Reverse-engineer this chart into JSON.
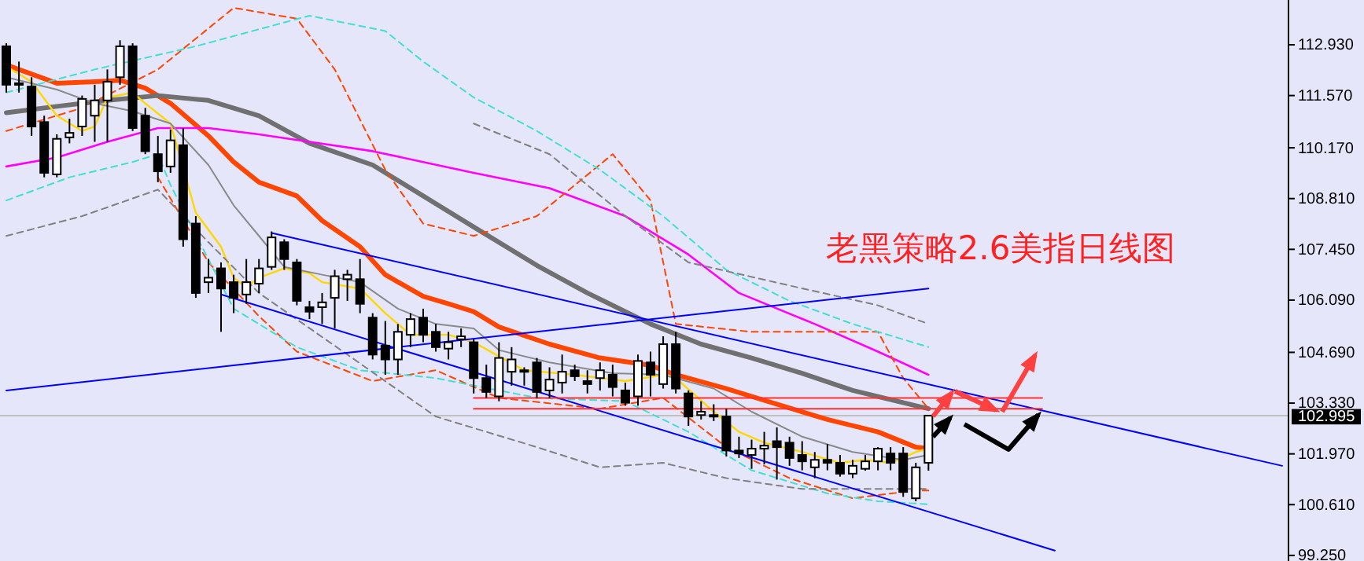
{
  "chart_data": {
    "type": "candlestick",
    "title": "老黑策略2.6美指日线图",
    "tick_labels": "y",
    "grid": false,
    "ylim": [
      99.1,
      114.13
    ],
    "yticks": [
      {
        "value": 112.93,
        "label": "112.930"
      },
      {
        "value": 111.57,
        "label": "111.570"
      },
      {
        "value": 110.17,
        "label": "110.170"
      },
      {
        "value": 108.81,
        "label": "108.810"
      },
      {
        "value": 107.45,
        "label": "107.450"
      },
      {
        "value": 106.09,
        "label": "106.090"
      },
      {
        "value": 104.69,
        "label": "104.690"
      },
      {
        "value": 103.33,
        "label": "103.330"
      },
      {
        "value": 101.97,
        "label": "101.970"
      },
      {
        "value": 100.61,
        "label": "100.610"
      },
      {
        "value": 99.25,
        "label": "99.250"
      }
    ],
    "categories": [
      null,
      null,
      null,
      null,
      null,
      null,
      null,
      null,
      null,
      null,
      null,
      null,
      null,
      null,
      null,
      null,
      null,
      null,
      null,
      null,
      null,
      null,
      null,
      null,
      null,
      null,
      null,
      null,
      null,
      null,
      null,
      null,
      null,
      null,
      null,
      null,
      null,
      null,
      null,
      null,
      null,
      null,
      null,
      null,
      null,
      null,
      null,
      null,
      null,
      null,
      null,
      null,
      null,
      null,
      null,
      null,
      null,
      null,
      null,
      null,
      null,
      null,
      null,
      null,
      null,
      null,
      null,
      null,
      null,
      null,
      null,
      null,
      null,
      null,
      null,
      null,
      null,
      null,
      null,
      null,
      null,
      null,
      null,
      null,
      null,
      null,
      null,
      null,
      null,
      null,
      null,
      null,
      null,
      null,
      null,
      null,
      null,
      null,
      null,
      null,
      null,
      null
    ],
    "ohlc": [
      [
        112.89,
        112.97,
        111.65,
        111.86
      ],
      [
        111.9,
        112.48,
        111.65,
        111.86
      ],
      [
        111.81,
        112.06,
        110.49,
        110.74
      ],
      [
        110.86,
        111.03,
        109.38,
        109.5
      ],
      [
        109.46,
        110.53,
        109.38,
        110.41
      ],
      [
        110.45,
        110.95,
        110.29,
        110.57
      ],
      [
        110.74,
        111.57,
        110.49,
        111.48
      ],
      [
        111.03,
        111.86,
        110.33,
        111.44
      ],
      [
        111.44,
        112.27,
        110.33,
        111.94
      ],
      [
        112.06,
        113.05,
        111.86,
        112.89
      ],
      [
        112.89,
        112.97,
        110.62,
        110.7
      ],
      [
        111.03,
        111.24,
        110.0,
        110.08
      ],
      [
        110.0,
        110.49,
        109.25,
        109.54
      ],
      [
        109.67,
        110.66,
        109.5,
        110.37
      ],
      [
        110.24,
        110.7,
        107.52,
        107.72
      ],
      [
        108.14,
        108.34,
        106.15,
        106.28
      ],
      [
        106.57,
        107.19,
        106.28,
        106.69
      ],
      [
        106.94,
        107.1,
        105.24,
        106.4
      ],
      [
        106.57,
        106.77,
        105.74,
        106.15
      ],
      [
        106.24,
        107.19,
        105.99,
        106.57
      ],
      [
        106.53,
        107.19,
        106.28,
        106.94
      ],
      [
        106.98,
        107.93,
        106.9,
        107.77
      ],
      [
        107.64,
        107.72,
        106.9,
        107.19
      ],
      [
        107.1,
        107.19,
        105.95,
        106.07
      ],
      [
        105.9,
        106.07,
        105.58,
        105.78
      ],
      [
        105.9,
        106.28,
        105.45,
        106.03
      ],
      [
        106.15,
        106.9,
        105.33,
        106.73
      ],
      [
        106.65,
        106.9,
        106.07,
        106.77
      ],
      [
        106.65,
        107.19,
        105.74,
        105.99
      ],
      [
        105.62,
        105.74,
        104.5,
        104.63
      ],
      [
        104.87,
        105.53,
        104.09,
        104.5
      ],
      [
        104.5,
        105.45,
        104.09,
        105.24
      ],
      [
        105.16,
        105.74,
        104.83,
        105.58
      ],
      [
        105.62,
        105.86,
        104.96,
        105.16
      ],
      [
        105.24,
        105.45,
        104.71,
        104.83
      ],
      [
        104.79,
        105.24,
        104.5,
        104.96
      ],
      [
        105.04,
        105.33,
        104.83,
        105.12
      ],
      [
        104.96,
        105.04,
        103.59,
        104.0
      ],
      [
        104.0,
        104.36,
        103.47,
        103.63
      ],
      [
        103.51,
        104.96,
        103.38,
        104.54
      ],
      [
        104.17,
        104.83,
        103.8,
        104.5
      ],
      [
        104.17,
        104.29,
        103.8,
        104.21
      ],
      [
        104.42,
        104.54,
        103.47,
        103.63
      ],
      [
        103.67,
        104.29,
        103.47,
        103.96
      ],
      [
        103.88,
        104.63,
        103.59,
        104.17
      ],
      [
        104.21,
        104.36,
        103.92,
        104.05
      ],
      [
        103.92,
        104.21,
        103.59,
        103.84
      ],
      [
        104.0,
        104.42,
        103.67,
        104.21
      ],
      [
        104.09,
        104.36,
        103.51,
        103.76
      ],
      [
        103.67,
        103.88,
        103.26,
        103.34
      ],
      [
        103.51,
        104.63,
        103.26,
        104.46
      ],
      [
        104.42,
        104.71,
        103.51,
        104.09
      ],
      [
        103.84,
        105.12,
        103.72,
        104.91
      ],
      [
        104.91,
        105.24,
        103.59,
        103.72
      ],
      [
        103.59,
        103.67,
        102.72,
        102.97
      ],
      [
        103.01,
        103.38,
        102.89,
        103.1
      ],
      [
        103.01,
        103.3,
        102.85,
        102.97
      ],
      [
        102.97,
        103.18,
        101.9,
        102.06
      ],
      [
        102.06,
        102.43,
        101.86,
        101.98
      ],
      [
        101.94,
        102.35,
        101.57,
        102.11
      ],
      [
        102.11,
        102.56,
        101.69,
        102.19
      ],
      [
        102.31,
        102.68,
        101.28,
        102.15
      ],
      [
        102.27,
        102.43,
        101.65,
        101.86
      ],
      [
        101.94,
        102.31,
        101.53,
        101.77
      ],
      [
        101.61,
        102.02,
        101.32,
        101.81
      ],
      [
        101.81,
        102.23,
        101.53,
        101.73
      ],
      [
        101.73,
        101.94,
        101.36,
        101.44
      ],
      [
        101.44,
        101.81,
        101.32,
        101.65
      ],
      [
        101.57,
        101.94,
        101.52,
        101.77
      ],
      [
        101.77,
        102.15,
        101.53,
        102.11
      ],
      [
        101.98,
        102.15,
        101.53,
        101.73
      ],
      [
        101.98,
        102.15,
        100.82,
        100.95
      ],
      [
        100.78,
        101.73,
        100.7,
        101.61
      ],
      [
        101.73,
        103.01,
        101.52,
        102.995
      ],
      null,
      null,
      null,
      null,
      null,
      null,
      null,
      null,
      null,
      null,
      null,
      null,
      null,
      null,
      null,
      null,
      null,
      null,
      null,
      null,
      null,
      null,
      null,
      null,
      null,
      null,
      null,
      null
    ],
    "ref_lines": [
      {
        "axis": "y",
        "value": 102.995,
        "label": "102.995",
        "color": "#c0c0c0"
      }
    ],
    "series": [
      {
        "type": "line",
        "color": "#ff4500",
        "line_style": "solid",
        "values": [
          112.39,
          null,
          null,
          null,
          111.9,
          null,
          null,
          111.94,
          null,
          111.98,
          null,
          111.77,
          null,
          111.36,
          null,
          null,
          110.49,
          null,
          109.79,
          null,
          109.25,
          null,
          null,
          108.88,
          null,
          108.22,
          null,
          null,
          107.52,
          null,
          106.77,
          null,
          null,
          106.19,
          null,
          105.99,
          null,
          105.78,
          null,
          105.37,
          null,
          null,
          null,
          104.91,
          null,
          null,
          null,
          104.54,
          null,
          null,
          null,
          104.34,
          null,
          104.09,
          null,
          null,
          null,
          103.72,
          null,
          null,
          null,
          103.3,
          null,
          null,
          null,
          102.89,
          null,
          null,
          null,
          102.56,
          null,
          null,
          102.15,
          102.11,
          null,
          null,
          null,
          null,
          null,
          null,
          null,
          null,
          null,
          null,
          null,
          null,
          null,
          null,
          null,
          null,
          null,
          null,
          null,
          null,
          null,
          null,
          null,
          null,
          null,
          null,
          null,
          null
        ]
      },
      {
        "type": "line",
        "color": "#707070",
        "line_style": "solid",
        "values": [
          111.11,
          null,
          null,
          null,
          111.28,
          null,
          null,
          null,
          111.44,
          null,
          null,
          null,
          111.57,
          null,
          null,
          null,
          111.44,
          null,
          null,
          null,
          111.03,
          null,
          null,
          null,
          110.29,
          null,
          null,
          null,
          null,
          109.71,
          null,
          null,
          null,
          108.88,
          null,
          null,
          null,
          108.05,
          null,
          null,
          null,
          null,
          107.02,
          null,
          null,
          null,
          106.28,
          null,
          null,
          null,
          null,
          105.45,
          null,
          null,
          null,
          104.91,
          null,
          null,
          null,
          104.54,
          null,
          null,
          null,
          104.13,
          null,
          null,
          null,
          103.67,
          null,
          null,
          null,
          null,
          103.26,
          103.18,
          null,
          null,
          null,
          null,
          null,
          null,
          null,
          null,
          null,
          null,
          null,
          null,
          null,
          null,
          null,
          null,
          null,
          null,
          null,
          null,
          null,
          null,
          null,
          null,
          null,
          null,
          null,
          null
        ]
      },
      {
        "type": "line",
        "color": "#ff00ff",
        "line_style": "solid",
        "values": [
          109.67,
          null,
          null,
          null,
          109.91,
          null,
          null,
          null,
          110.33,
          null,
          null,
          null,
          110.7,
          null,
          null,
          null,
          110.7,
          null,
          null,
          null,
          110.53,
          null,
          null,
          null,
          110.33,
          null,
          null,
          null,
          null,
          110.08,
          null,
          null,
          null,
          109.79,
          null,
          null,
          null,
          109.5,
          null,
          null,
          null,
          null,
          null,
          109.09,
          null,
          null,
          null,
          null,
          null,
          108.34,
          null,
          null,
          null,
          null,
          107.31,
          null,
          null,
          null,
          106.28,
          null,
          null,
          null,
          null,
          null,
          105.45,
          null,
          null,
          null,
          null,
          104.71,
          null,
          null,
          null,
          104.09,
          null,
          null,
          null,
          null,
          null,
          null,
          null,
          null,
          null,
          null,
          null,
          null,
          null,
          null,
          null,
          null,
          null,
          null,
          null,
          null,
          null,
          null,
          null,
          null,
          null,
          null,
          null,
          null
        ]
      },
      {
        "type": "line",
        "color": "#ffd700",
        "line_style": "solid",
        "values": [
          112.35,
          null,
          111.94,
          null,
          111.03,
          null,
          110.62,
          110.74,
          111.52,
          null,
          111.65,
          111.36,
          null,
          110.82,
          null,
          108.43,
          null,
          107.52,
          106.69,
          106.44,
          106.69,
          null,
          106.94,
          null,
          106.81,
          106.57,
          null,
          null,
          106.4,
          null,
          105.74,
          null,
          105.16,
          null,
          null,
          105.16,
          null,
          104.96,
          null,
          null,
          null,
          104.21,
          null,
          null,
          null,
          104.09,
          null,
          null,
          null,
          103.92,
          null,
          null,
          104.09,
          104.0,
          null,
          null,
          103.1,
          null,
          102.56,
          null,
          102.27,
          null,
          null,
          102.02,
          null,
          null,
          101.73,
          null,
          101.81,
          null,
          101.73,
          null,
          102.02,
          102.11,
          null,
          null,
          null,
          null,
          null,
          null,
          null,
          null,
          null,
          null,
          null,
          null,
          null,
          null,
          null,
          null,
          null,
          null,
          null,
          null,
          null,
          null,
          null,
          null,
          null,
          null,
          null,
          null
        ]
      },
      {
        "type": "line",
        "color": "#8a8a8a",
        "line_style": "solid",
        "values": [
          112.06,
          null,
          null,
          null,
          111.73,
          null,
          null,
          111.36,
          null,
          null,
          111.15,
          null,
          null,
          110.82,
          null,
          null,
          109.71,
          null,
          108.63,
          null,
          107.81,
          null,
          106.98,
          null,
          null,
          106.77,
          null,
          null,
          106.57,
          null,
          null,
          105.86,
          null,
          null,
          105.45,
          null,
          null,
          105.33,
          null,
          104.75,
          null,
          null,
          null,
          104.42,
          null,
          null,
          null,
          null,
          104.13,
          null,
          null,
          null,
          104.09,
          null,
          null,
          null,
          103.72,
          null,
          null,
          103.1,
          null,
          null,
          null,
          102.43,
          null,
          null,
          null,
          102.02,
          null,
          null,
          null,
          101.81,
          null,
          101.94,
          null,
          null,
          null,
          null,
          null,
          null,
          null,
          null,
          null,
          null,
          null,
          null,
          null,
          null,
          null,
          null,
          null,
          null,
          null,
          null,
          null,
          null,
          null,
          null,
          null,
          null,
          null,
          null
        ]
      },
      {
        "type": "line",
        "color": "#ff4500",
        "line_style": "dashed",
        "values": [
          110.62,
          null,
          null,
          null,
          null,
          null,
          111.24,
          null,
          null,
          null,
          null,
          null,
          112.27,
          null,
          null,
          null,
          null,
          null,
          113.92,
          null,
          null,
          null,
          null,
          113.63,
          null,
          null,
          112.27,
          null,
          null,
          null,
          109.58,
          null,
          null,
          108.14,
          null,
          null,
          null,
          107.81,
          null,
          null,
          null,
          null,
          108.34,
          null,
          null,
          null,
          null,
          null,
          110.0,
          null,
          null,
          108.76,
          null,
          105.45,
          null,
          null,
          null,
          null,
          null,
          105.24,
          null,
          null,
          null,
          null,
          null,
          null,
          null,
          null,
          null,
          105.24,
          null,
          104.0,
          null,
          103.18,
          null,
          null,
          null,
          null,
          null,
          null,
          null,
          null,
          null,
          null,
          null,
          null,
          null,
          null,
          null,
          null,
          null,
          null,
          null,
          null,
          null,
          null,
          null,
          null,
          null,
          null,
          null,
          null
        ]
      },
      {
        "type": "line",
        "color": "#ff4500",
        "line_style": "dashed",
        "values": [
          null,
          null,
          null,
          null,
          null,
          null,
          null,
          null,
          null,
          null,
          null,
          null,
          109.38,
          null,
          null,
          null,
          107.1,
          null,
          null,
          null,
          105.66,
          null,
          null,
          104.71,
          null,
          null,
          null,
          null,
          null,
          103.92,
          null,
          null,
          null,
          null,
          104.21,
          null,
          null,
          null,
          null,
          103.47,
          null,
          null,
          null,
          null,
          null,
          null,
          null,
          103.18,
          null,
          null,
          null,
          null,
          103.47,
          null,
          null,
          null,
          null,
          102.15,
          null,
          null,
          null,
          null,
          101.32,
          null,
          null,
          null,
          null,
          100.78,
          null,
          null,
          null,
          null,
          100.99,
          100.99,
          null,
          null,
          null,
          null,
          null,
          null,
          null,
          null,
          null,
          null,
          null,
          null,
          null,
          null,
          null,
          null,
          null,
          null,
          null,
          null,
          null,
          null,
          null,
          null,
          null,
          null,
          null,
          null
        ]
      },
      {
        "type": "line",
        "color": "#40e0d0",
        "line_style": "dashed",
        "values": [
          111.65,
          null,
          null,
          null,
          null,
          null,
          null,
          112.27,
          null,
          null,
          null,
          null,
          null,
          null,
          null,
          112.89,
          null,
          null,
          null,
          null,
          null,
          null,
          null,
          null,
          113.71,
          null,
          null,
          null,
          null,
          null,
          113.3,
          null,
          null,
          112.48,
          null,
          null,
          null,
          111.52,
          null,
          null,
          null,
          null,
          110.62,
          null,
          null,
          null,
          null,
          109.58,
          null,
          null,
          null,
          null,
          108.34,
          null,
          null,
          null,
          null,
          106.9,
          null,
          null,
          null,
          null,
          106.07,
          null,
          null,
          null,
          null,
          105.45,
          null,
          null,
          null,
          null,
          null,
          104.83,
          null,
          null,
          null,
          null,
          null,
          null,
          null,
          null,
          null,
          null,
          null,
          null,
          null,
          null,
          null,
          null,
          null,
          null,
          null,
          null,
          null,
          null,
          null,
          null,
          null,
          null,
          null,
          null
        ]
      },
      {
        "type": "line",
        "color": "#40e0d0",
        "line_style": "dashed",
        "values": [
          108.76,
          null,
          null,
          null,
          null,
          109.38,
          null,
          null,
          null,
          null,
          109.79,
          null,
          110.0,
          109.17,
          null,
          null,
          null,
          null,
          105.86,
          null,
          null,
          null,
          null,
          104.83,
          null,
          null,
          null,
          null,
          104.21,
          null,
          null,
          null,
          null,
          null,
          104.0,
          null,
          null,
          null,
          null,
          null,
          null,
          null,
          103.47,
          null,
          null,
          null,
          null,
          null,
          null,
          103.38,
          null,
          null,
          null,
          null,
          102.56,
          null,
          null,
          null,
          null,
          101.53,
          null,
          null,
          null,
          null,
          null,
          100.91,
          null,
          null,
          null,
          100.7,
          null,
          null,
          null,
          100.62,
          null,
          null,
          null,
          null,
          null,
          null,
          null,
          null,
          null,
          null,
          null,
          null,
          null,
          null,
          null,
          null,
          null,
          null,
          null,
          null,
          null,
          null,
          null,
          null,
          null,
          null,
          null,
          null
        ]
      },
      {
        "type": "line",
        "color": "#808080",
        "line_style": "dashed",
        "values": [
          null,
          null,
          null,
          null,
          null,
          null,
          null,
          null,
          null,
          null,
          null,
          null,
          null,
          null,
          null,
          null,
          null,
          null,
          null,
          null,
          null,
          null,
          null,
          null,
          null,
          null,
          null,
          null,
          null,
          null,
          null,
          null,
          null,
          null,
          null,
          null,
          null,
          110.82,
          null,
          null,
          null,
          null,
          null,
          110.0,
          null,
          null,
          null,
          null,
          null,
          108.34,
          null,
          null,
          null,
          null,
          107.1,
          null,
          null,
          null,
          null,
          null,
          null,
          null,
          106.48,
          null,
          null,
          null,
          null,
          null,
          null,
          105.95,
          null,
          null,
          null,
          105.45,
          null,
          null,
          null,
          null,
          null,
          null,
          null,
          null,
          null,
          null,
          null,
          null,
          null,
          null,
          null,
          null,
          null,
          null,
          null,
          null,
          null,
          null,
          null,
          null,
          null,
          null,
          null,
          null
        ]
      },
      {
        "type": "line",
        "color": "#808080",
        "line_style": "dashed",
        "values": [
          107.81,
          null,
          null,
          null,
          null,
          null,
          108.34,
          null,
          null,
          null,
          null,
          null,
          109.05,
          null,
          null,
          null,
          107.64,
          null,
          null,
          null,
          106.28,
          null,
          null,
          null,
          null,
          null,
          null,
          104.63,
          null,
          null,
          null,
          null,
          null,
          null,
          102.97,
          null,
          null,
          null,
          null,
          null,
          null,
          null,
          102.15,
          null,
          null,
          null,
          null,
          101.61,
          null,
          null,
          null,
          null,
          101.73,
          null,
          null,
          null,
          null,
          101.32,
          null,
          null,
          null,
          null,
          null,
          101.03,
          null,
          null,
          null,
          null,
          null,
          null,
          null,
          null,
          null,
          101.03,
          null,
          null,
          null,
          null,
          null,
          null,
          null,
          null,
          null,
          null,
          null,
          null,
          null,
          null,
          null,
          null,
          null,
          null,
          null,
          null,
          null,
          null,
          null,
          null,
          null,
          null,
          null,
          null
        ]
      },
      {
        "type": "line",
        "color": "#0000ff",
        "line_style": "solid",
        "values": [
          null,
          null,
          null,
          null,
          null,
          null,
          null,
          null,
          null,
          null,
          null,
          null,
          null,
          null,
          null,
          null,
          null,
          null,
          null,
          null,
          null,
          107.89,
          null,
          null,
          null,
          null,
          null,
          null,
          null,
          null,
          null,
          null,
          null,
          null,
          null,
          null,
          null,
          null,
          null,
          null,
          null,
          null,
          null,
          null,
          null,
          null,
          null,
          null,
          null,
          null,
          null,
          null,
          null,
          null,
          null,
          null,
          null,
          null,
          null,
          null,
          null,
          null,
          null,
          null,
          null,
          null,
          null,
          null,
          null,
          null,
          null,
          null,
          null,
          null,
          null,
          null,
          null,
          null,
          null,
          null,
          null,
          null,
          null,
          null,
          null,
          null,
          null,
          null,
          null,
          null,
          null,
          null,
          null,
          null,
          null,
          null,
          null,
          null,
          null,
          null,
          null,
          101.65
        ]
      },
      {
        "type": "line",
        "color": "#0000ff",
        "line_style": "solid",
        "values": [
          null,
          null,
          null,
          null,
          null,
          null,
          null,
          null,
          null,
          null,
          null,
          null,
          null,
          null,
          null,
          null,
          null,
          106.24,
          null,
          null,
          null,
          null,
          null,
          null,
          null,
          null,
          null,
          null,
          null,
          null,
          null,
          null,
          null,
          null,
          null,
          null,
          null,
          null,
          null,
          null,
          null,
          null,
          null,
          null,
          null,
          null,
          null,
          null,
          null,
          null,
          null,
          null,
          null,
          null,
          null,
          null,
          null,
          null,
          null,
          null,
          null,
          null,
          null,
          null,
          null,
          null,
          null,
          null,
          null,
          null,
          null,
          null,
          null,
          null,
          null,
          null,
          null,
          null,
          null,
          null,
          null,
          null,
          null,
          99.38,
          null,
          null,
          null,
          null,
          null,
          null,
          null,
          null,
          null,
          null,
          null,
          null,
          null,
          null,
          null,
          null,
          null,
          null
        ]
      },
      {
        "type": "line",
        "color": "#0000ff",
        "line_style": "solid",
        "values": [
          103.67,
          null,
          null,
          null,
          null,
          null,
          null,
          null,
          null,
          null,
          null,
          null,
          null,
          null,
          null,
          null,
          null,
          null,
          null,
          null,
          null,
          null,
          null,
          null,
          null,
          null,
          null,
          null,
          null,
          null,
          null,
          null,
          null,
          null,
          null,
          null,
          null,
          null,
          null,
          null,
          null,
          null,
          null,
          null,
          null,
          null,
          null,
          null,
          null,
          null,
          null,
          null,
          null,
          null,
          null,
          null,
          null,
          null,
          null,
          null,
          null,
          null,
          null,
          null,
          null,
          null,
          null,
          null,
          null,
          null,
          null,
          null,
          null,
          106.4,
          null,
          null,
          null,
          null,
          null,
          null,
          null,
          null,
          null,
          null,
          null,
          null,
          null,
          null,
          null,
          null,
          null,
          null,
          null,
          null,
          null,
          null,
          null,
          null,
          null,
          null,
          null,
          null
        ]
      },
      {
        "type": "line",
        "color": "#ff3030",
        "line_style": "solid",
        "values": [
          null,
          null,
          null,
          null,
          null,
          null,
          null,
          null,
          null,
          null,
          null,
          null,
          null,
          null,
          null,
          null,
          null,
          null,
          null,
          null,
          null,
          null,
          null,
          null,
          null,
          null,
          null,
          null,
          null,
          null,
          null,
          null,
          null,
          null,
          null,
          null,
          null,
          103.47,
          null,
          null,
          null,
          null,
          null,
          null,
          null,
          null,
          null,
          null,
          null,
          null,
          null,
          null,
          null,
          null,
          null,
          null,
          null,
          null,
          null,
          null,
          null,
          null,
          null,
          null,
          null,
          null,
          null,
          null,
          null,
          null,
          null,
          null,
          null,
          null,
          null,
          null,
          null,
          null,
          null,
          null,
          null,
          null,
          103.47,
          null,
          null,
          null,
          null,
          null,
          null,
          null,
          null,
          null,
          null,
          null,
          null,
          null,
          null,
          null,
          null,
          null,
          null,
          null
        ]
      },
      {
        "type": "line",
        "color": "#ff3030",
        "line_style": "solid",
        "values": [
          null,
          null,
          null,
          null,
          null,
          null,
          null,
          null,
          null,
          null,
          null,
          null,
          null,
          null,
          null,
          null,
          null,
          null,
          null,
          null,
          null,
          null,
          null,
          null,
          null,
          null,
          null,
          null,
          null,
          null,
          null,
          null,
          null,
          null,
          null,
          null,
          null,
          103.18,
          null,
          null,
          null,
          null,
          null,
          null,
          null,
          null,
          null,
          null,
          null,
          null,
          null,
          null,
          null,
          null,
          null,
          null,
          null,
          null,
          null,
          null,
          null,
          null,
          null,
          null,
          null,
          null,
          null,
          null,
          null,
          null,
          null,
          null,
          null,
          null,
          null,
          null,
          null,
          null,
          null,
          null,
          null,
          null,
          103.18,
          null,
          null,
          null,
          null,
          null,
          null,
          null,
          null,
          null,
          null,
          null,
          null,
          null,
          null,
          null,
          null,
          null,
          null,
          null
        ]
      }
    ]
  }
}
